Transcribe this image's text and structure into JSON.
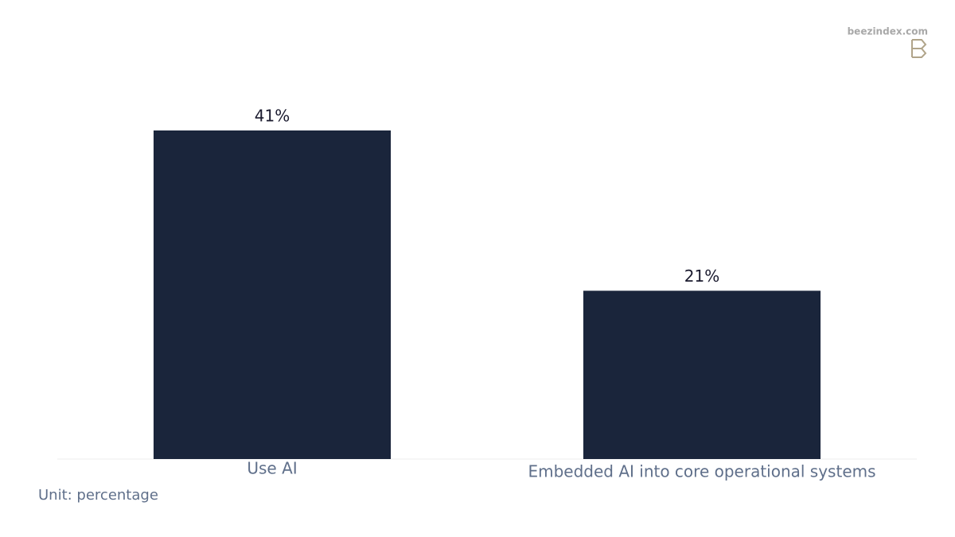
{
  "chart_data": {
    "type": "bar",
    "categories": [
      "Use AI",
      "Embedded AI into core operational systems"
    ],
    "values": [
      41,
      21
    ],
    "value_labels": [
      "41%",
      "21%"
    ],
    "color": "#1a253b",
    "unit_note": "Unit: percentage",
    "watermark": "beezindex.com"
  }
}
